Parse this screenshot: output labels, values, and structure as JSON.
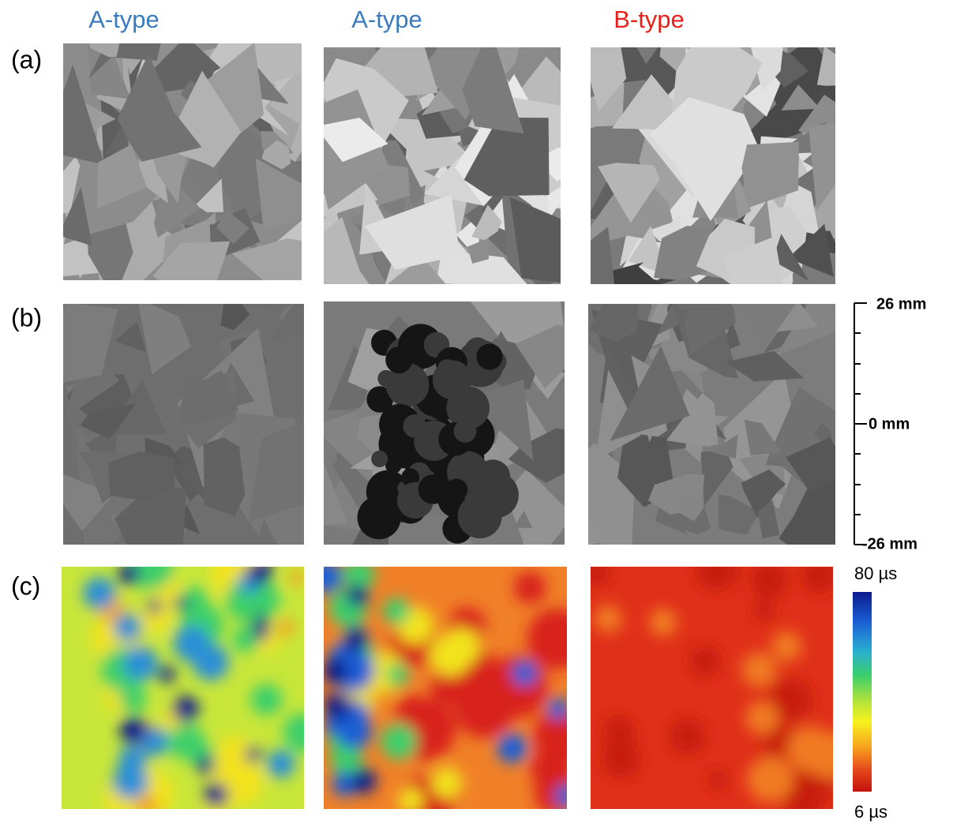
{
  "columns": [
    {
      "label": "A-type"
    },
    {
      "label": "A-type"
    },
    {
      "label": "B-type"
    }
  ],
  "rows": [
    {
      "label": "(a)"
    },
    {
      "label": "(b)"
    },
    {
      "label": "(c)"
    }
  ],
  "scale_bar": {
    "labels": [
      "26 mm",
      "0 mm",
      "-26 mm"
    ]
  },
  "colorbar": {
    "max_label": "80 µs",
    "min_label": "6 µs"
  }
}
